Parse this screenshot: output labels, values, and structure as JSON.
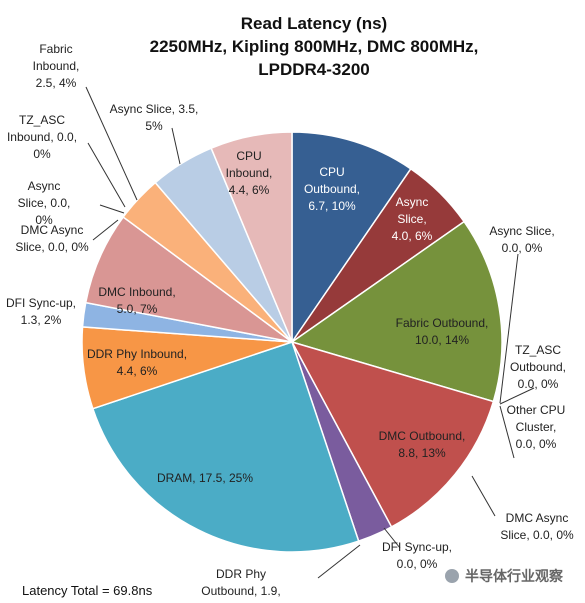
{
  "chart_data": {
    "type": "pie",
    "title": [
      "Read Latency (ns)",
      "2250MHz, Kipling 800MHz, DMC 800MHz,",
      "LPDDR4-3200"
    ],
    "slices": [
      {
        "label": "CPU Outbound",
        "value": 6.7,
        "percent": "10%",
        "color": "#365f92"
      },
      {
        "label": "Async Slice",
        "value": 4.0,
        "percent": "6%",
        "color": "#963a3a"
      },
      {
        "label": "Async Slice",
        "value": 0.0,
        "percent": "0%",
        "color": "#76923c"
      },
      {
        "label": "Fabric Outbound",
        "value": 10.0,
        "percent": "14%",
        "color": "#76923c"
      },
      {
        "label": "TZ_ASC Outbound",
        "value": 0.0,
        "percent": "0%",
        "color": "#76923c"
      },
      {
        "label": "Other CPU Cluster",
        "value": 0.0,
        "percent": "0%",
        "color": "#76923c"
      },
      {
        "label": "DMC Outbound",
        "value": 8.8,
        "percent": "13%",
        "color": "#c0504d"
      },
      {
        "label": "DMC Async Slice",
        "value": 0.0,
        "percent": "0%",
        "color": "#c0504d"
      },
      {
        "label": "DFI Sync-up",
        "value": 0.0,
        "percent": "0%",
        "color": "#c0504d"
      },
      {
        "label": "DDR Phy Outbound",
        "value": 1.9,
        "percent": "",
        "color": "#7a5c9e"
      },
      {
        "label": "DRAM",
        "value": 17.5,
        "percent": "25%",
        "color": "#4bacc6"
      },
      {
        "label": "DDR Phy Inbound",
        "value": 4.4,
        "percent": "6%",
        "color": "#f79646"
      },
      {
        "label": "DFI Sync-up",
        "value": 1.3,
        "percent": "2%",
        "color": "#8eb4e3"
      },
      {
        "label": "DMC Inbound",
        "value": 5.0,
        "percent": "7%",
        "color": "#d99694"
      },
      {
        "label": "DMC Async Slice",
        "value": 0.0,
        "percent": "0%",
        "color": "#d99694"
      },
      {
        "label": "Async Slice",
        "value": 0.0,
        "percent": "0%",
        "color": "#d99694"
      },
      {
        "label": "TZ_ASC Inbound",
        "value": 0.0,
        "percent": "0%",
        "color": "#d99694"
      },
      {
        "label": "Fabric Inbound",
        "value": 2.5,
        "percent": "4%",
        "color": "#fab17a"
      },
      {
        "label": "Async Slice",
        "value": 3.5,
        "percent": "5%",
        "color": "#b9cde5"
      },
      {
        "label": "CPU Inbound",
        "value": 4.4,
        "percent": "6%",
        "color": "#e6b9b8"
      }
    ],
    "label_lines": [
      [
        "CPU",
        "Outbound,",
        "6.7, 10%"
      ],
      [
        "Async",
        "Slice,",
        "4.0, 6%"
      ],
      [
        "Async Slice,",
        "0.0, 0%"
      ],
      [
        "Fabric Outbound,",
        "10.0, 14%"
      ],
      [
        "TZ_ASC",
        "Outbound,",
        "0.0, 0%"
      ],
      [
        "Other CPU",
        "Cluster,",
        "0.0, 0%"
      ],
      [
        "DMC Outbound,",
        "8.8, 13%"
      ],
      [
        "DMC Async",
        "Slice, 0.0, 0%"
      ],
      [
        "DFI Sync-up,",
        "0.0, 0%"
      ],
      [
        "DDR Phy",
        "Outbound, 1.9,"
      ],
      [
        "DRAM, 17.5, 25%"
      ],
      [
        "DDR Phy Inbound,",
        "4.4, 6%"
      ],
      [
        "DFI Sync-up,",
        "1.3, 2%"
      ],
      [
        "DMC Inbound,",
        "5.0, 7%"
      ],
      [
        "DMC Async",
        "Slice, 0.0, 0%"
      ],
      [
        "Async",
        "Slice, 0.0,",
        "0%"
      ],
      [
        "TZ_ASC",
        "Inbound, 0.0,",
        "0%"
      ],
      [
        "Fabric",
        "Inbound,",
        "2.5, 4%"
      ],
      [
        "Async Slice, 3.5,",
        "5%"
      ],
      [
        "CPU",
        "Inbound,",
        "4.4, 6%"
      ]
    ]
  },
  "footer": {
    "total": "Latency Total = 69.8ns",
    "watermark": "半导体行业观察",
    "watermark_icon": "wechat-icon"
  }
}
